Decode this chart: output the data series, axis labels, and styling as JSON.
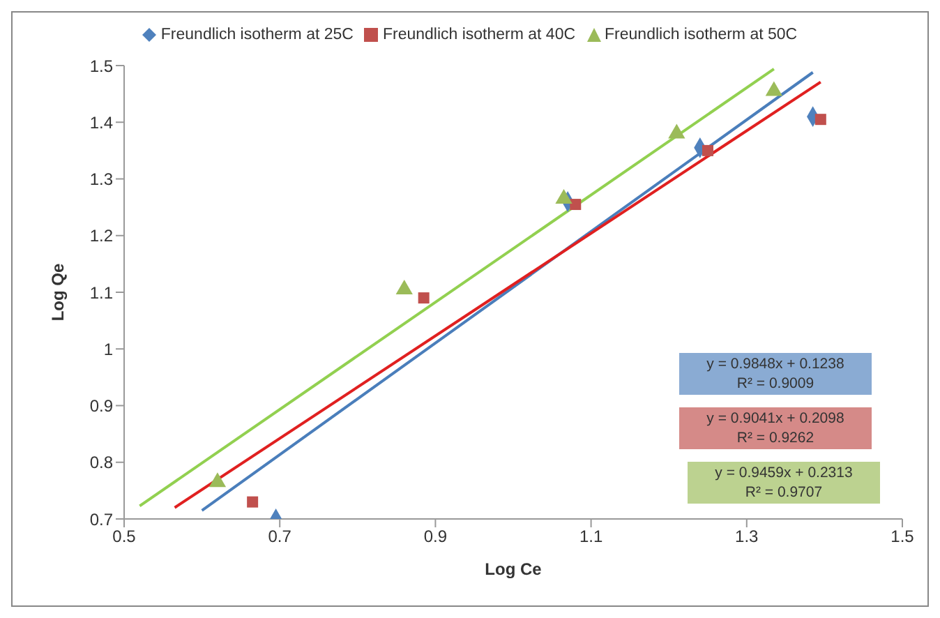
{
  "chart_data": {
    "type": "scatter",
    "xlabel": "Log Ce",
    "ylabel": "Log Qe",
    "xlim": [
      0.5,
      1.5
    ],
    "xticks": [
      0.5,
      0.7,
      0.9,
      1.1,
      1.3,
      1.5
    ],
    "ylim": [
      0.7,
      1.5
    ],
    "yticks": [
      0.7,
      0.8,
      0.9,
      1,
      1.1,
      1.2,
      1.3,
      1.4,
      1.5
    ],
    "grid": false,
    "legend": "top",
    "series": [
      {
        "name": "Freundlich isotherm at 25C",
        "marker": "diamond",
        "color": "#4f81bd",
        "x": [
          0.695,
          1.07,
          1.24,
          1.385
        ],
        "values": [
          0.7,
          1.26,
          1.355,
          1.41
        ]
      },
      {
        "name": "Freundlich isotherm at 40C",
        "marker": "square",
        "color": "#c0504d",
        "x": [
          0.665,
          0.885,
          1.08,
          1.25,
          1.395
        ],
        "values": [
          0.73,
          1.09,
          1.255,
          1.35,
          1.405
        ]
      },
      {
        "name": "Freundlich isotherm at 50C",
        "marker": "triangle",
        "color": "#9bbb59",
        "x": [
          0.62,
          0.86,
          1.065,
          1.21,
          1.335
        ],
        "values": [
          0.765,
          1.105,
          1.265,
          1.38,
          1.455
        ]
      },
      {
        "type": "line",
        "marker": "none",
        "color": "#4a7ebb",
        "x": [
          0.6,
          1.385
        ],
        "values": [
          0.715,
          1.488
        ]
      },
      {
        "type": "line",
        "marker": "none",
        "color": "#e02020",
        "x": [
          0.565,
          1.395
        ],
        "values": [
          0.72,
          1.471
        ]
      },
      {
        "type": "line",
        "marker": "none",
        "color": "#92d050",
        "x": [
          0.52,
          1.335
        ],
        "values": [
          0.723,
          1.494
        ]
      }
    ],
    "annotations": [
      "y = 0.9848x + 0.1238\nR² = 0.9009",
      "y = 0.9041x + 0.2098\nR² = 0.9262",
      "y = 0.9459x + 0.2313\nR² = 0.9707"
    ]
  }
}
